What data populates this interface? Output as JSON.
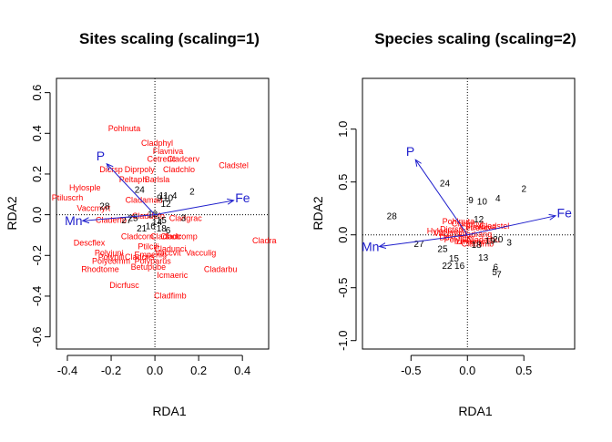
{
  "colors": {
    "sites": "#000000",
    "species": "#ff0000",
    "env": "#1f1fcc",
    "axis": "#000000"
  },
  "chart_data": [
    {
      "type": "scatter",
      "title": "Sites scaling (scaling=1)",
      "xlabel": "RDA1",
      "ylabel": "RDA2",
      "xlim": [
        -0.45,
        0.52
      ],
      "ylim": [
        -0.66,
        0.67
      ],
      "xticks": [
        -0.4,
        -0.2,
        0.0,
        0.2,
        0.4
      ],
      "xtick_labels": [
        "-0.4",
        "-0.2",
        "0.0",
        "0.2",
        "0.4"
      ],
      "yticks": [
        -0.6,
        -0.4,
        -0.2,
        0.0,
        0.2,
        0.4,
        0.6
      ],
      "ytick_labels": [
        "-0.6",
        "-0.4",
        "-0.2",
        "0.0",
        "0.2",
        "0.4",
        "0.6"
      ],
      "sites": [
        {
          "label": "24",
          "x": -0.07,
          "y": 0.12
        },
        {
          "label": "28",
          "x": -0.23,
          "y": 0.04
        },
        {
          "label": "2",
          "x": 0.17,
          "y": 0.11
        },
        {
          "label": "4",
          "x": 0.09,
          "y": 0.09
        },
        {
          "label": "11",
          "x": 0.04,
          "y": 0.09
        },
        {
          "label": "10",
          "x": 0.06,
          "y": 0.08
        },
        {
          "label": "9",
          "x": 0.02,
          "y": 0.08
        },
        {
          "label": "3",
          "x": 0.13,
          "y": -0.02
        },
        {
          "label": "27",
          "x": -0.13,
          "y": -0.03
        },
        {
          "label": "25",
          "x": -0.1,
          "y": -0.02
        },
        {
          "label": "14",
          "x": 0.01,
          "y": -0.04
        },
        {
          "label": "18",
          "x": 0.03,
          "y": -0.07
        },
        {
          "label": "21",
          "x": -0.06,
          "y": -0.07
        },
        {
          "label": "6",
          "x": 0.06,
          "y": -0.08
        },
        {
          "label": "12",
          "x": 0.05,
          "y": 0.05
        },
        {
          "label": "16",
          "x": -0.02,
          "y": -0.06
        },
        {
          "label": "13",
          "x": -0.01,
          "y": 0.0
        },
        {
          "label": "15",
          "x": 0.03,
          "y": -0.03
        }
      ],
      "species": [
        {
          "label": "Pohlnuta",
          "x": -0.14,
          "y": 0.42
        },
        {
          "label": "Cladphyl",
          "x": 0.01,
          "y": 0.35
        },
        {
          "label": "Flavniva",
          "x": 0.06,
          "y": 0.31
        },
        {
          "label": "Cetreric",
          "x": 0.03,
          "y": 0.27
        },
        {
          "label": "Cladcerv",
          "x": 0.13,
          "y": 0.27
        },
        {
          "label": "Cladstel",
          "x": 0.36,
          "y": 0.24
        },
        {
          "label": "Cladchlo",
          "x": 0.11,
          "y": 0.22
        },
        {
          "label": "Dicrsp",
          "x": -0.2,
          "y": 0.22
        },
        {
          "label": "Diprpoly",
          "x": -0.07,
          "y": 0.22
        },
        {
          "label": "Peltaph",
          "x": -0.1,
          "y": 0.17
        },
        {
          "label": "Barlsla",
          "x": 0.01,
          "y": 0.17
        },
        {
          "label": "Hylosple",
          "x": -0.32,
          "y": 0.13
        },
        {
          "label": "Ptiluscrh",
          "x": -0.4,
          "y": 0.08
        },
        {
          "label": "Vaccmyrt",
          "x": -0.28,
          "y": 0.03
        },
        {
          "label": "Cladamau",
          "x": -0.05,
          "y": 0.07
        },
        {
          "label": "Claddefo",
          "x": -0.03,
          "y": -0.01
        },
        {
          "label": "Cladgrac",
          "x": 0.14,
          "y": -0.02
        },
        {
          "label": "Claderfo",
          "x": -0.2,
          "y": -0.03
        },
        {
          "label": "Descflex",
          "x": -0.3,
          "y": -0.14
        },
        {
          "label": "Polyjuni",
          "x": -0.21,
          "y": -0.19
        },
        {
          "label": "Polypili",
          "x": -0.2,
          "y": -0.21
        },
        {
          "label": "Polycomm",
          "x": -0.2,
          "y": -0.23
        },
        {
          "label": "Rhodtome",
          "x": -0.25,
          "y": -0.27
        },
        {
          "label": "Dicrfusc",
          "x": -0.14,
          "y": -0.35
        },
        {
          "label": "Cladfimb",
          "x": 0.07,
          "y": -0.4
        },
        {
          "label": "Icmaeric",
          "x": 0.08,
          "y": -0.3
        },
        {
          "label": "Cladarbu",
          "x": 0.3,
          "y": -0.27
        },
        {
          "label": "Betupube",
          "x": -0.03,
          "y": -0.26
        },
        {
          "label": "Cladcorn",
          "x": -0.08,
          "y": -0.11
        },
        {
          "label": "Ptilcili",
          "x": -0.03,
          "y": -0.16
        },
        {
          "label": "Cladbotr",
          "x": 0.05,
          "y": -0.11
        },
        {
          "label": "Cladcomp",
          "x": 0.11,
          "y": -0.11
        },
        {
          "label": "Cladunci",
          "x": 0.07,
          "y": -0.17
        },
        {
          "label": "Vaccvit",
          "x": 0.06,
          "y": -0.19
        },
        {
          "label": "Vacculig",
          "x": 0.21,
          "y": -0.19
        },
        {
          "label": "Empenig",
          "x": -0.02,
          "y": -0.2
        },
        {
          "label": "Cladcris",
          "x": -0.07,
          "y": -0.21
        },
        {
          "label": "Polyparus",
          "x": -0.01,
          "y": -0.23
        },
        {
          "label": "Cladra",
          "x": 0.5,
          "y": -0.13
        }
      ],
      "env": [
        {
          "label": "P",
          "x": -0.22,
          "y": 0.25
        },
        {
          "label": "Fe",
          "x": 0.36,
          "y": 0.07
        },
        {
          "label": "Mn",
          "x": -0.33,
          "y": -0.03
        }
      ]
    },
    {
      "type": "scatter",
      "title": "Species scaling (scaling=2)",
      "xlabel": "RDA1",
      "ylabel": "RDA2",
      "xlim": [
        -0.93,
        0.95
      ],
      "ylim": [
        -1.08,
        1.48
      ],
      "xticks": [
        -0.5,
        0.0,
        0.5
      ],
      "xtick_labels": [
        "-0.5",
        "0.0",
        "0.5"
      ],
      "yticks": [
        -1.0,
        -0.5,
        0.0,
        0.5,
        1.0
      ],
      "ytick_labels": [
        "-1.0",
        "-0.5",
        "0.0",
        "0.5",
        "1.0"
      ],
      "sites": [
        {
          "label": "24",
          "x": -0.2,
          "y": 0.48
        },
        {
          "label": "28",
          "x": -0.67,
          "y": 0.17
        },
        {
          "label": "2",
          "x": 0.5,
          "y": 0.43
        },
        {
          "label": "4",
          "x": 0.27,
          "y": 0.34
        },
        {
          "label": "9",
          "x": 0.03,
          "y": 0.32
        },
        {
          "label": "10",
          "x": 0.13,
          "y": 0.31
        },
        {
          "label": "12",
          "x": 0.1,
          "y": 0.14
        },
        {
          "label": "3",
          "x": 0.37,
          "y": -0.08
        },
        {
          "label": "27",
          "x": -0.43,
          "y": -0.09
        },
        {
          "label": "25",
          "x": -0.22,
          "y": -0.14
        },
        {
          "label": "15",
          "x": -0.12,
          "y": -0.23
        },
        {
          "label": "13",
          "x": 0.14,
          "y": -0.22
        },
        {
          "label": "22",
          "x": -0.18,
          "y": -0.3
        },
        {
          "label": "16",
          "x": -0.07,
          "y": -0.3
        },
        {
          "label": "6",
          "x": 0.25,
          "y": -0.31
        },
        {
          "label": "5",
          "x": 0.24,
          "y": -0.36
        },
        {
          "label": "7",
          "x": 0.28,
          "y": -0.38
        },
        {
          "label": "20",
          "x": 0.27,
          "y": -0.05
        },
        {
          "label": "19",
          "x": 0.2,
          "y": -0.06
        },
        {
          "label": "18",
          "x": 0.08,
          "y": -0.1
        }
      ],
      "species": [
        {
          "label": "Pohlnuta",
          "x": -0.08,
          "y": 0.12
        },
        {
          "label": "Cladstel",
          "x": 0.24,
          "y": 0.08
        },
        {
          "label": "Cladphyl",
          "x": 0.0,
          "y": 0.1
        },
        {
          "label": "Cetreric",
          "x": 0.06,
          "y": 0.06
        },
        {
          "label": "Flavniva",
          "x": 0.12,
          "y": 0.07
        },
        {
          "label": "Dicrsp",
          "x": -0.14,
          "y": 0.05
        },
        {
          "label": "Hylosple",
          "x": -0.22,
          "y": 0.03
        },
        {
          "label": "Vaccmyrt",
          "x": -0.15,
          "y": 0.01
        },
        {
          "label": "Cladrang",
          "x": 0.07,
          "y": 0.0
        },
        {
          "label": "Descflex",
          "x": -0.11,
          "y": -0.03
        },
        {
          "label": "Polyjuni",
          "x": -0.08,
          "y": -0.05
        },
        {
          "label": "Cladfimb",
          "x": 0.09,
          "y": -0.09
        },
        {
          "label": "Cladarbu",
          "x": 0.14,
          "y": -0.05
        },
        {
          "label": "Icmaeric",
          "x": 0.02,
          "y": -0.07
        }
      ],
      "env": [
        {
          "label": "P",
          "x": -0.46,
          "y": 0.71
        },
        {
          "label": "Fe",
          "x": 0.78,
          "y": 0.18
        },
        {
          "label": "Mn",
          "x": -0.78,
          "y": -0.11
        }
      ]
    }
  ]
}
